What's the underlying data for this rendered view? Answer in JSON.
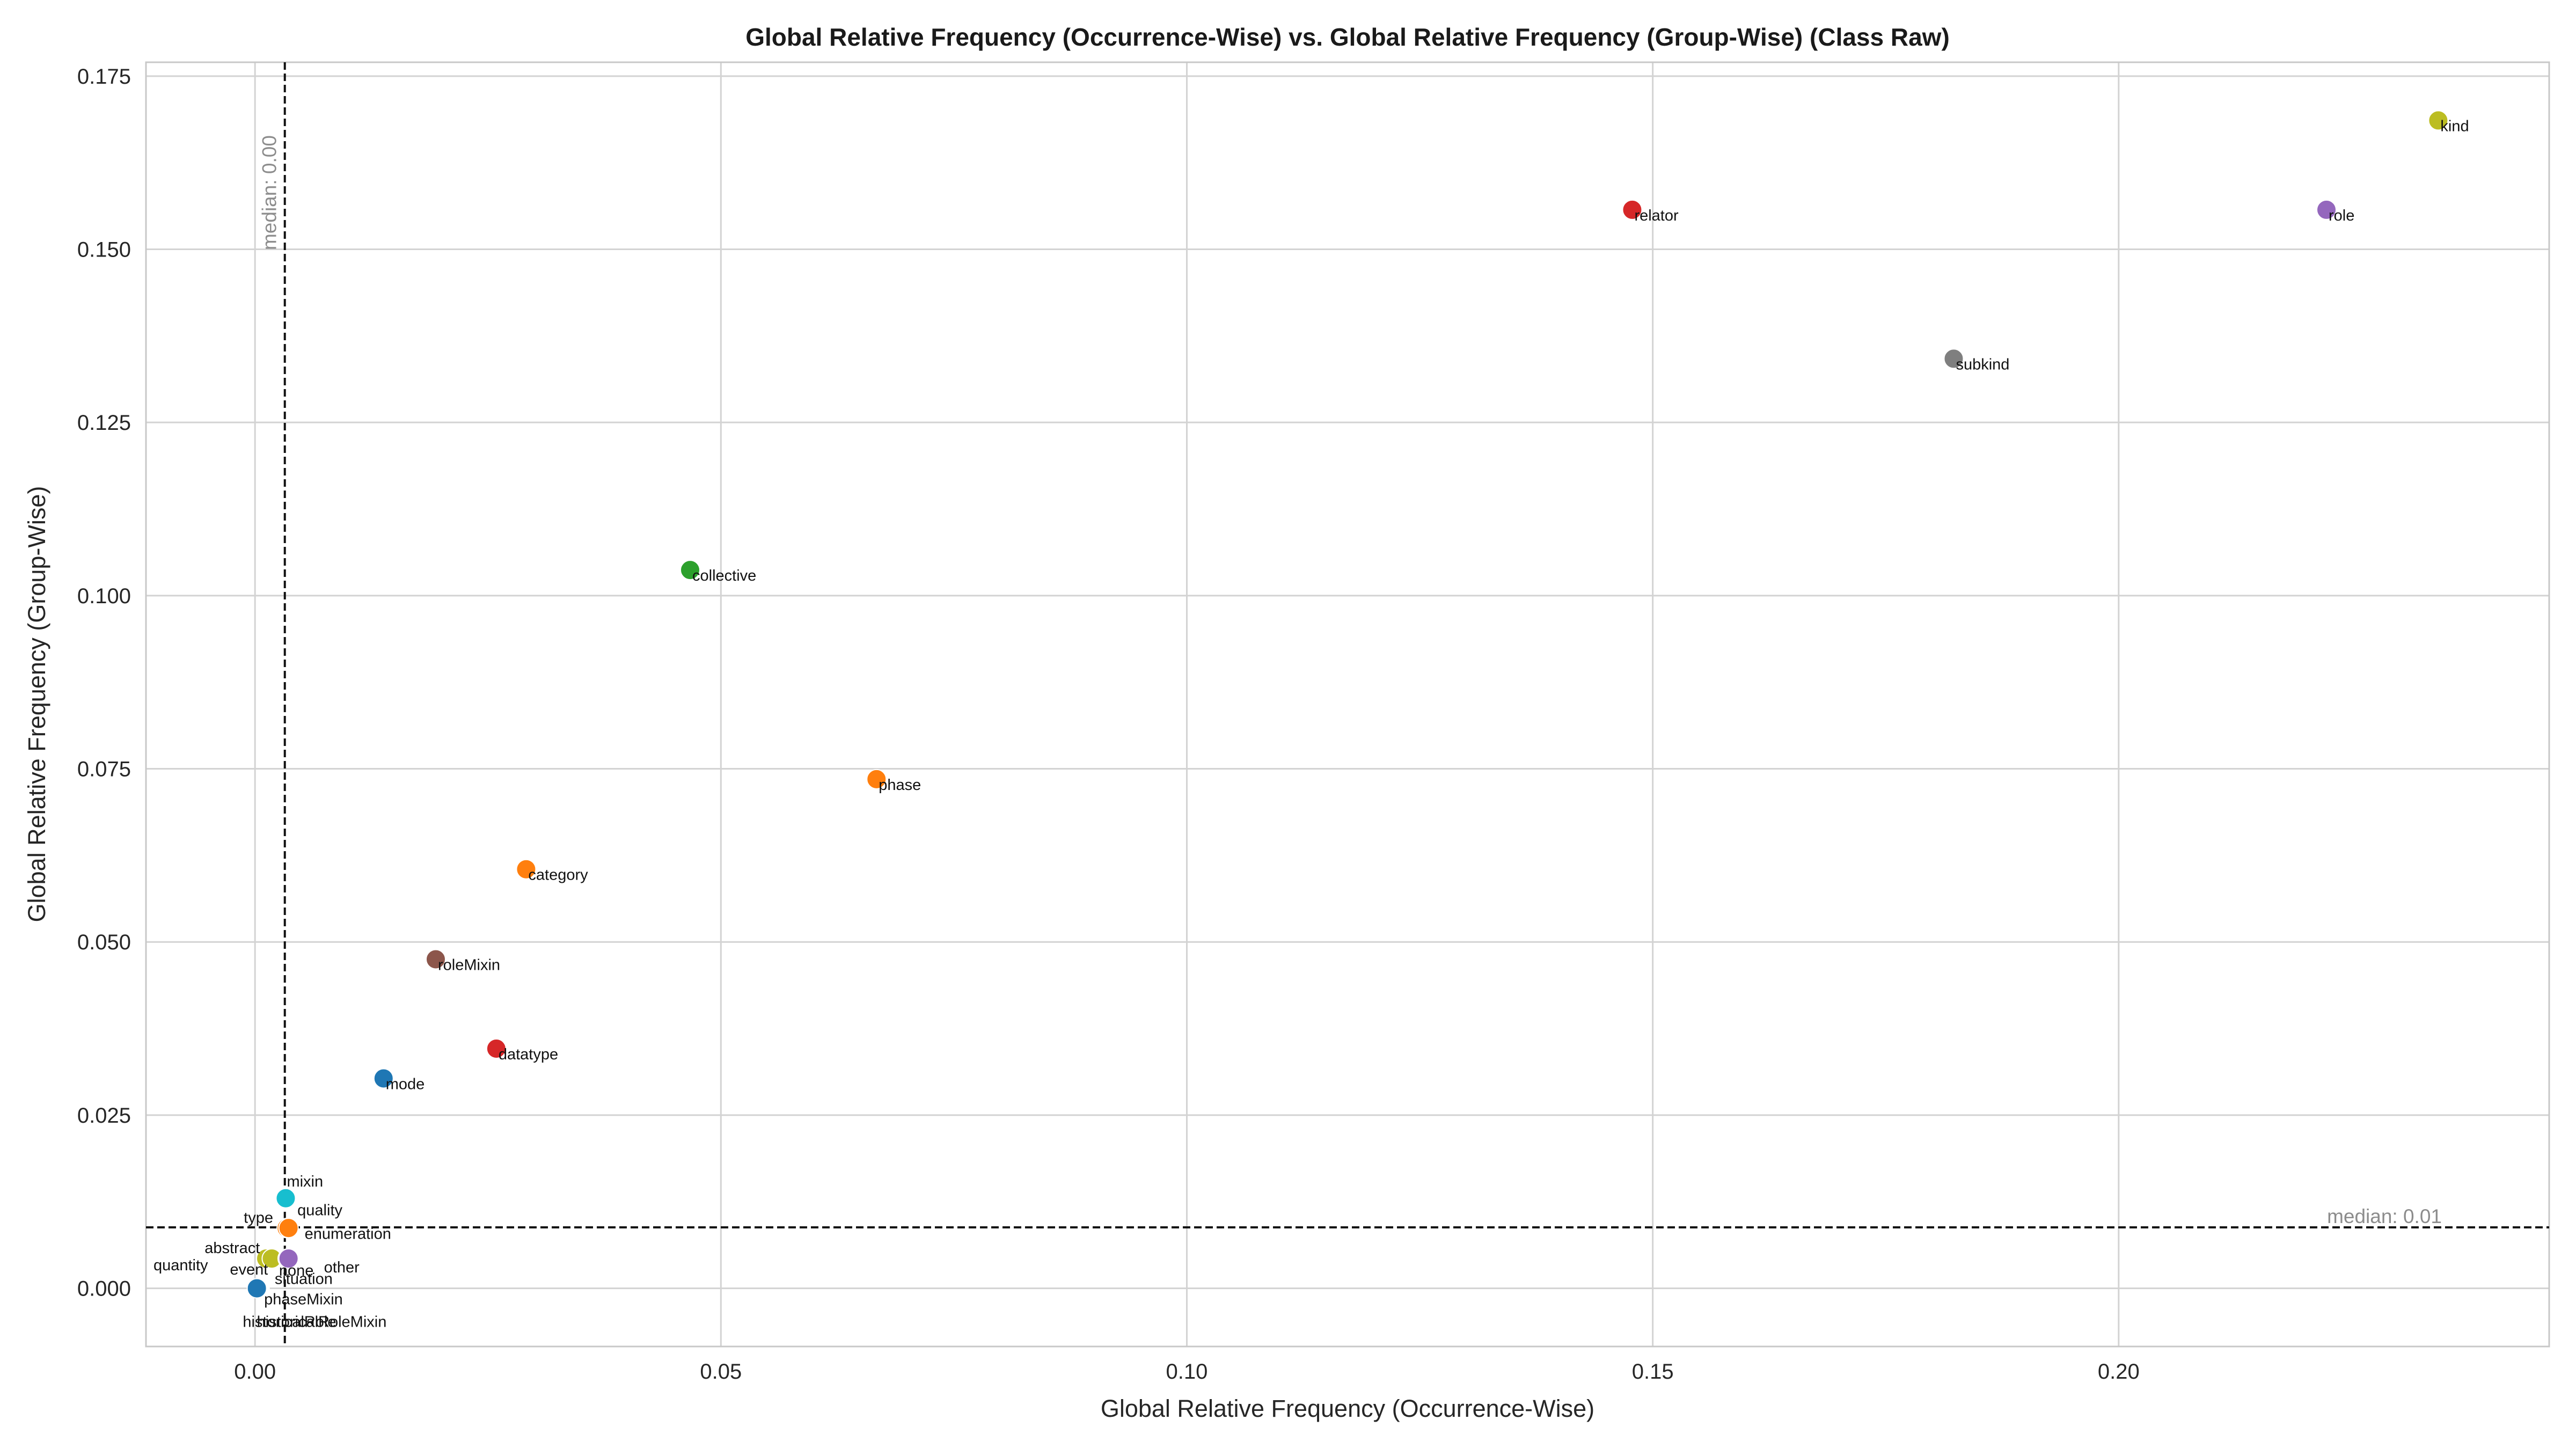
{
  "chart_data": {
    "type": "scatter",
    "title": "Global Relative Frequency (Occurrence-Wise) vs. Global Relative Frequency (Group-Wise) (Class Raw)",
    "xlabel": "Global Relative Frequency (Occurrence-Wise)",
    "ylabel": "Global Relative Frequency (Group-Wise)",
    "xlim": [
      -0.0117,
      0.2462
    ],
    "ylim": [
      -0.0084,
      0.177
    ],
    "xticks": [
      0.0,
      0.05,
      0.1,
      0.15,
      0.2
    ],
    "xtick_labels": [
      "0.00",
      "0.05",
      "0.10",
      "0.15",
      "0.20"
    ],
    "yticks": [
      0.0,
      0.025,
      0.05,
      0.075,
      0.1,
      0.125,
      0.15,
      0.175
    ],
    "ytick_labels": [
      "0.000",
      "0.025",
      "0.050",
      "0.075",
      "0.100",
      "0.125",
      "0.150",
      "0.175"
    ],
    "grid": true,
    "medians": {
      "x": {
        "value": 0.0032,
        "label": "median: 0.00"
      },
      "y": {
        "value": 0.0088,
        "label": "median: 0.01"
      }
    },
    "points": [
      {
        "label": "kind",
        "x": 0.2343,
        "y": 0.1686,
        "color": "#bcbd22"
      },
      {
        "label": "role",
        "x": 0.2223,
        "y": 0.1557,
        "color": "#9467bd"
      },
      {
        "label": "relator",
        "x": 0.1478,
        "y": 0.1557,
        "color": "#d62728"
      },
      {
        "label": "subkind",
        "x": 0.1823,
        "y": 0.1342,
        "color": "#7f7f7f"
      },
      {
        "label": "collective",
        "x": 0.0467,
        "y": 0.1037,
        "color": "#2ca02c"
      },
      {
        "label": "phase",
        "x": 0.0667,
        "y": 0.0735,
        "color": "#ff7f0e"
      },
      {
        "label": "category",
        "x": 0.0291,
        "y": 0.0605,
        "color": "#ff7f0e"
      },
      {
        "label": "roleMixin",
        "x": 0.0194,
        "y": 0.0475,
        "color": "#8c564b"
      },
      {
        "label": "datatype",
        "x": 0.0259,
        "y": 0.0346,
        "color": "#d62728"
      },
      {
        "label": "mode",
        "x": 0.0138,
        "y": 0.0303,
        "color": "#1f77b4"
      },
      {
        "label": "mixin",
        "x": 0.0033,
        "y": 0.013,
        "color": "#17becf"
      },
      {
        "label": "quality",
        "x": 0.0034,
        "y": 0.0087,
        "color": "#ff7f0e"
      },
      {
        "label": "type",
        "x": 0.0034,
        "y": 0.0087,
        "color": "#ff7f0e"
      },
      {
        "label": "enumeration",
        "x": 0.0036,
        "y": 0.0087,
        "color": "#ff7f0e"
      },
      {
        "label": "abstract",
        "x": 0.0015,
        "y": 0.0043,
        "color": "#bcbd22"
      },
      {
        "label": "quantity",
        "x": 0.0012,
        "y": 0.0043,
        "color": "#bcbd22"
      },
      {
        "label": "event",
        "x": 0.0018,
        "y": 0.0043,
        "color": "#bcbd22"
      },
      {
        "label": "none",
        "x": 0.0035,
        "y": 0.0043,
        "color": "#9467bd"
      },
      {
        "label": "other",
        "x": 0.0036,
        "y": 0.0043,
        "color": "#9467bd"
      },
      {
        "label": "situation",
        "x": 0.0005,
        "y": 0.0,
        "color": "#1f77b4"
      },
      {
        "label": "phaseMixin",
        "x": 0.0004,
        "y": 0.0,
        "color": "#1f77b4"
      },
      {
        "label": "historicalRole",
        "x": 0.0003,
        "y": 0.0,
        "color": "#1f77b4"
      },
      {
        "label": "historicalRoleMixin",
        "x": 0.0002,
        "y": 0.0,
        "color": "#1f77b4"
      }
    ]
  }
}
